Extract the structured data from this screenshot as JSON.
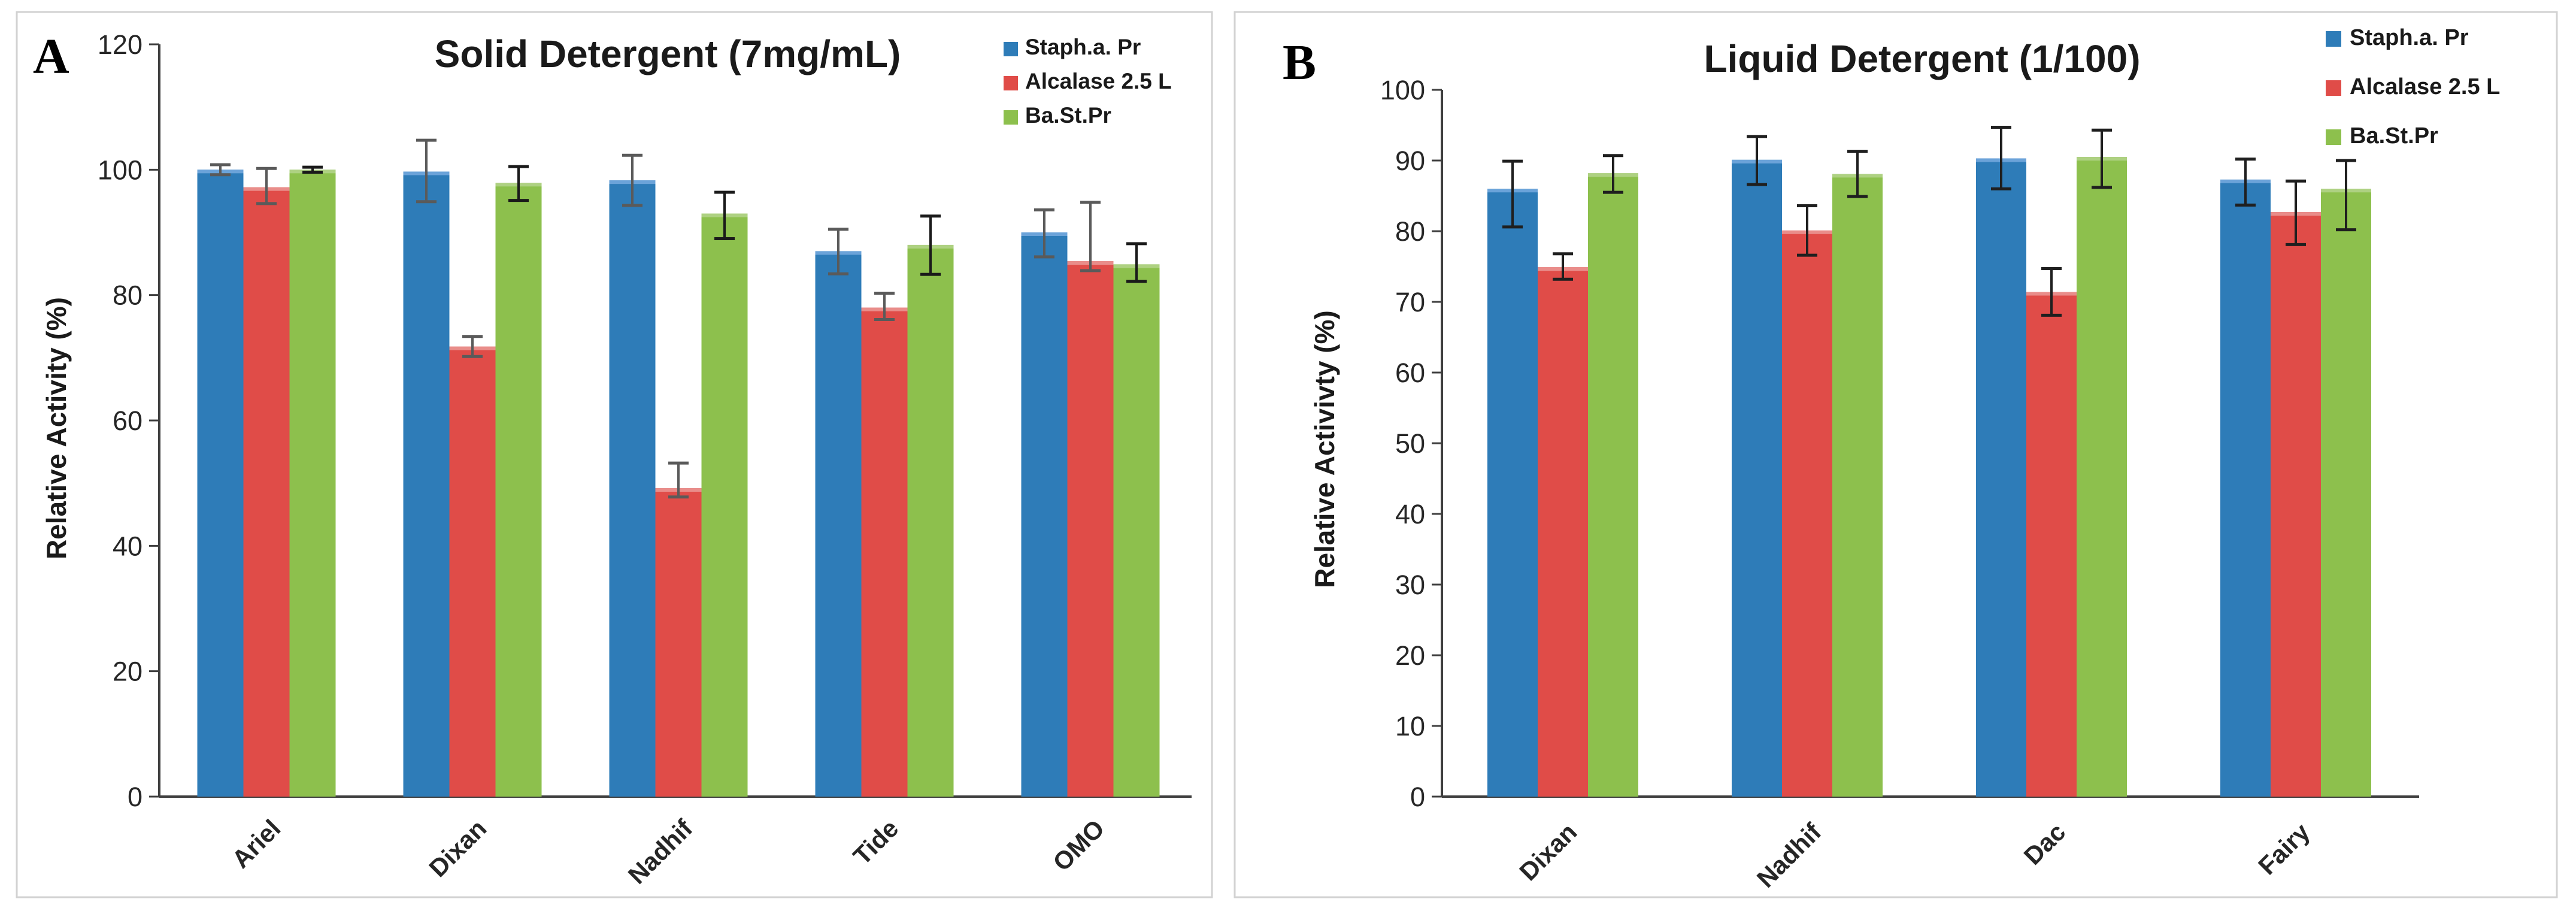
{
  "figure": {
    "description_labels": {
      "panel_a": "A",
      "panel_b": "B"
    }
  },
  "chart_data": [
    {
      "type": "bar",
      "panel_letter": "A",
      "title": "Solid Detergent (7mg/mL)",
      "ylabel": "Relative Activity (%)",
      "xlabel": "",
      "ylim": [
        0,
        120
      ],
      "yticks": [
        0,
        20,
        40,
        60,
        80,
        100,
        120
      ],
      "grid": false,
      "legend_position": "top-right",
      "categories": [
        "Ariel",
        "Dixan",
        "Nadhif",
        "Tide",
        "OMO"
      ],
      "series": [
        {
          "name": "Staph.a. Pr",
          "color": "#2E7CB8",
          "color_light": "#6BA3D9",
          "err_color": "#5a5a5a",
          "values": [
            100,
            99.7,
            98.3,
            87,
            90
          ],
          "err_up": [
            0.8,
            5,
            4,
            3.5,
            3.6
          ],
          "err_dn": [
            0.8,
            4.8,
            4,
            3.6,
            3.9
          ]
        },
        {
          "name": " Alcalase 2.5 L",
          "color": "#E04C48",
          "color_light": "#E98D8A",
          "err_color": "#5a5a5a",
          "values": [
            97.2,
            71.8,
            49.2,
            78,
            85.4
          ],
          "err_up": [
            3,
            1.6,
            4,
            2.3,
            9.4
          ],
          "err_dn": [
            2.6,
            1.6,
            1.4,
            1.9,
            1.5
          ]
        },
        {
          "name": "Ba.St.Pr",
          "color": "#8DC04D",
          "color_light": "#AED182",
          "err_color": "#1a1a1a",
          "values": [
            100,
            97.9,
            93,
            88,
            84.9
          ],
          "err_up": [
            0.4,
            2.6,
            3.4,
            4.6,
            3.3
          ],
          "err_dn": [
            0.4,
            2.8,
            4,
            4.7,
            2.7
          ]
        }
      ]
    },
    {
      "type": "bar",
      "panel_letter": "B",
      "title": "Liquid Detergent (1/100)",
      "ylabel": "Relative Activivty (%)",
      "xlabel": "",
      "ylim": [
        0,
        100
      ],
      "yticks": [
        0,
        10,
        20,
        30,
        40,
        50,
        60,
        70,
        80,
        90,
        100
      ],
      "grid": false,
      "legend_position": "top-right",
      "categories": [
        "Dixan",
        "Nadhif",
        "Dac",
        "Fairy"
      ],
      "series": [
        {
          "name": "Staph.a. Pr",
          "color": "#2E7CB8",
          "color_light": "#6BA3D9",
          "err_color": "#1f1f1f",
          "values": [
            86,
            90.1,
            90.3,
            87.3
          ],
          "err_up": [
            3.9,
            3.3,
            4.4,
            2.9
          ],
          "err_dn": [
            5.4,
            3.5,
            4.3,
            3.6
          ]
        },
        {
          "name": "Alcalase 2.5 L",
          "color": "#E04C48",
          "color_light": "#E98D8A",
          "err_color": "#1f1f1f",
          "values": [
            74.9,
            80.1,
            71.4,
            82.7
          ],
          "err_up": [
            1.9,
            3.5,
            3.3,
            4.4
          ],
          "err_dn": [
            1.7,
            3.5,
            3.3,
            4.6
          ]
        },
        {
          "name": "Ba.St.Pr",
          "color": "#8DC04D",
          "color_light": "#AED182",
          "err_color": "#1f1f1f",
          "values": [
            88.2,
            88.1,
            90.5,
            86
          ],
          "err_up": [
            2.5,
            3.2,
            3.8,
            4.0
          ],
          "err_dn": [
            2.7,
            3.2,
            4.3,
            5.8
          ]
        }
      ]
    }
  ]
}
